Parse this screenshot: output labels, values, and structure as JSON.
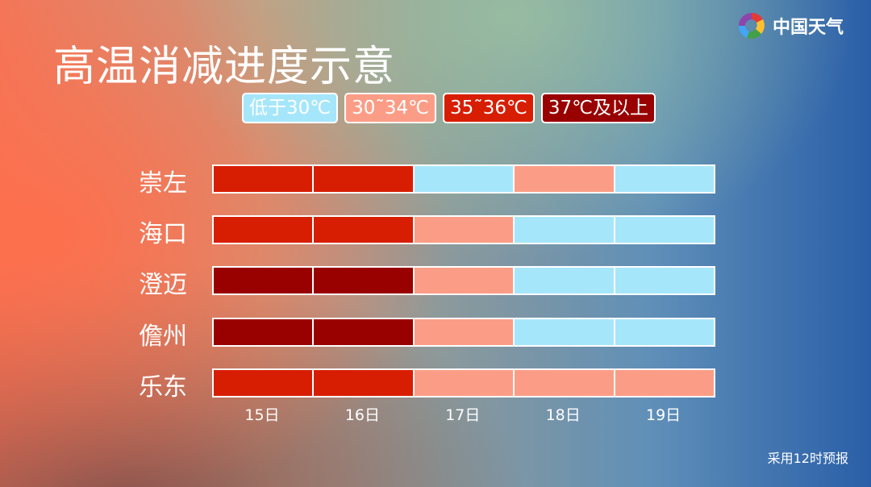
{
  "title": "高温消减进度示意",
  "logo": {
    "text": "中国天气",
    "icon": "china-weather-swirl-logo"
  },
  "note": "采用12时预报",
  "chart_data": {
    "type": "heatmap",
    "title": "高温消减进度示意",
    "legend": [
      {
        "label": "低于30℃",
        "color": "#a6e6fb"
      },
      {
        "label": "30˜34℃",
        "color": "#fb9d86"
      },
      {
        "label": "35˜36℃",
        "color": "#d81e02"
      },
      {
        "label": "37℃及以上",
        "color": "#990000"
      }
    ],
    "legend_placement": "top",
    "columns": [
      "15日",
      "16日",
      "17日",
      "18日",
      "19日"
    ],
    "rows": [
      {
        "name": "崇左",
        "levels": [
          2,
          2,
          0,
          1,
          0
        ]
      },
      {
        "name": "海口",
        "levels": [
          2,
          2,
          1,
          0,
          0
        ]
      },
      {
        "name": "澄迈",
        "levels": [
          3,
          3,
          1,
          0,
          0
        ]
      },
      {
        "name": "儋州",
        "levels": [
          3,
          3,
          1,
          0,
          0
        ]
      },
      {
        "name": "乐东",
        "levels": [
          2,
          2,
          1,
          1,
          1
        ]
      }
    ]
  }
}
